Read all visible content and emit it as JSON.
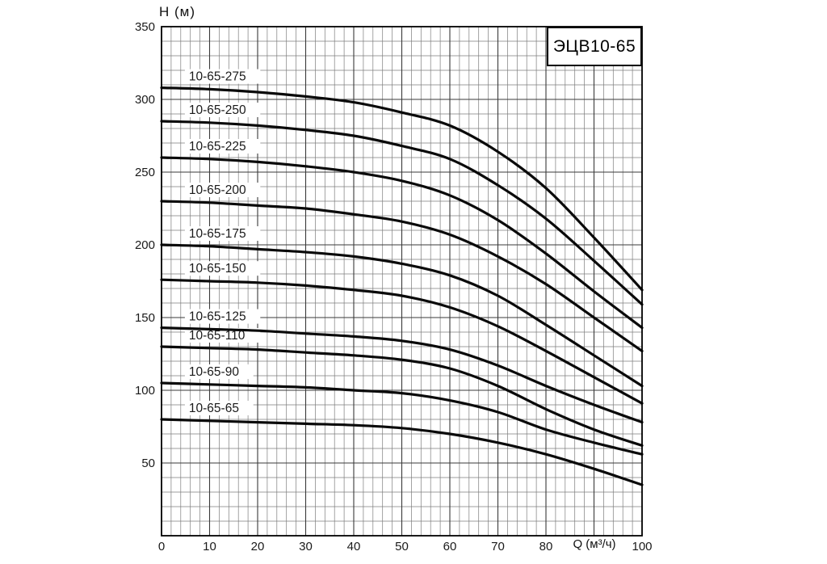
{
  "figure": {
    "ylabel": "Н (м)",
    "xlabel": "Q (м³/ч)",
    "title_box": "ЭЦВ10-65"
  },
  "chart_data": {
    "type": "line",
    "title": "ЭЦВ10-65",
    "subtitle": "",
    "xlabel": "Q (м³/ч)",
    "ylabel": "Н (м)",
    "xlim": [
      0,
      100
    ],
    "ylim": [
      0,
      350
    ],
    "x_minor_step": 2,
    "x_major_step": 10,
    "y_minor_step": 10,
    "y_major_step": 50,
    "x_tick_labels": [
      0,
      10,
      20,
      30,
      40,
      50,
      60,
      70,
      80,
      100
    ],
    "xlabel_position": 90,
    "y_tick_labels": [
      50,
      100,
      150,
      200,
      250,
      300,
      350
    ],
    "grid": "major+minor",
    "legend_position": "inline-curve-labels",
    "x": [
      0,
      10,
      20,
      30,
      40,
      50,
      60,
      70,
      80,
      90,
      100
    ],
    "series": [
      {
        "name": "10-65-275",
        "values": [
          308,
          307,
          305,
          302,
          298,
          291,
          282,
          264,
          239,
          205,
          169
        ],
        "label_q": 5.7,
        "label_h": 313
      },
      {
        "name": "10-65-250",
        "values": [
          285,
          284,
          282,
          279,
          275,
          268,
          259,
          241,
          218,
          189,
          159
        ],
        "label_q": 5.7,
        "label_h": 290
      },
      {
        "name": "10-65-225",
        "values": [
          260,
          259,
          257,
          254,
          250,
          244,
          234,
          217,
          194,
          168,
          143
        ],
        "label_q": 5.7,
        "label_h": 265
      },
      {
        "name": "10-65-200",
        "values": [
          230,
          229,
          227,
          225,
          221,
          216,
          207,
          192,
          173,
          150,
          127
        ],
        "label_q": 5.7,
        "label_h": 235
      },
      {
        "name": "10-65-175",
        "values": [
          200,
          199,
          197,
          195,
          192,
          187,
          179,
          165,
          145,
          124,
          103
        ],
        "label_q": 5.7,
        "label_h": 205
      },
      {
        "name": "10-65-150",
        "values": [
          176,
          175,
          174,
          172,
          169,
          165,
          157,
          144,
          127,
          109,
          91
        ],
        "label_q": 5.7,
        "label_h": 181
      },
      {
        "name": "10-65-125",
        "values": [
          143,
          142,
          141,
          139,
          137,
          134,
          128,
          117,
          103,
          90,
          78
        ],
        "label_q": 5.7,
        "label_h": 148
      },
      {
        "name": "10-65-110",
        "values": [
          130,
          129,
          128,
          126,
          124,
          121,
          115,
          103,
          87,
          73,
          62
        ],
        "label_q": 5.7,
        "label_h": 135
      },
      {
        "name": "10-65-90",
        "values": [
          105,
          104,
          103,
          102,
          100,
          98,
          93,
          85,
          73,
          64,
          56
        ],
        "label_q": 5.7,
        "label_h": 110
      },
      {
        "name": "10-65-65",
        "values": [
          80,
          79,
          78,
          77,
          76,
          74,
          70,
          64,
          56,
          46,
          35
        ],
        "label_q": 5.7,
        "label_h": 85
      }
    ]
  },
  "colors": {
    "background": "#ffffff",
    "curve": "#0a0a0a",
    "grid_minor": "#7d7d7d",
    "grid_major": "#3a3a3a",
    "frame": "#000000",
    "text": "#1a1a1a"
  }
}
